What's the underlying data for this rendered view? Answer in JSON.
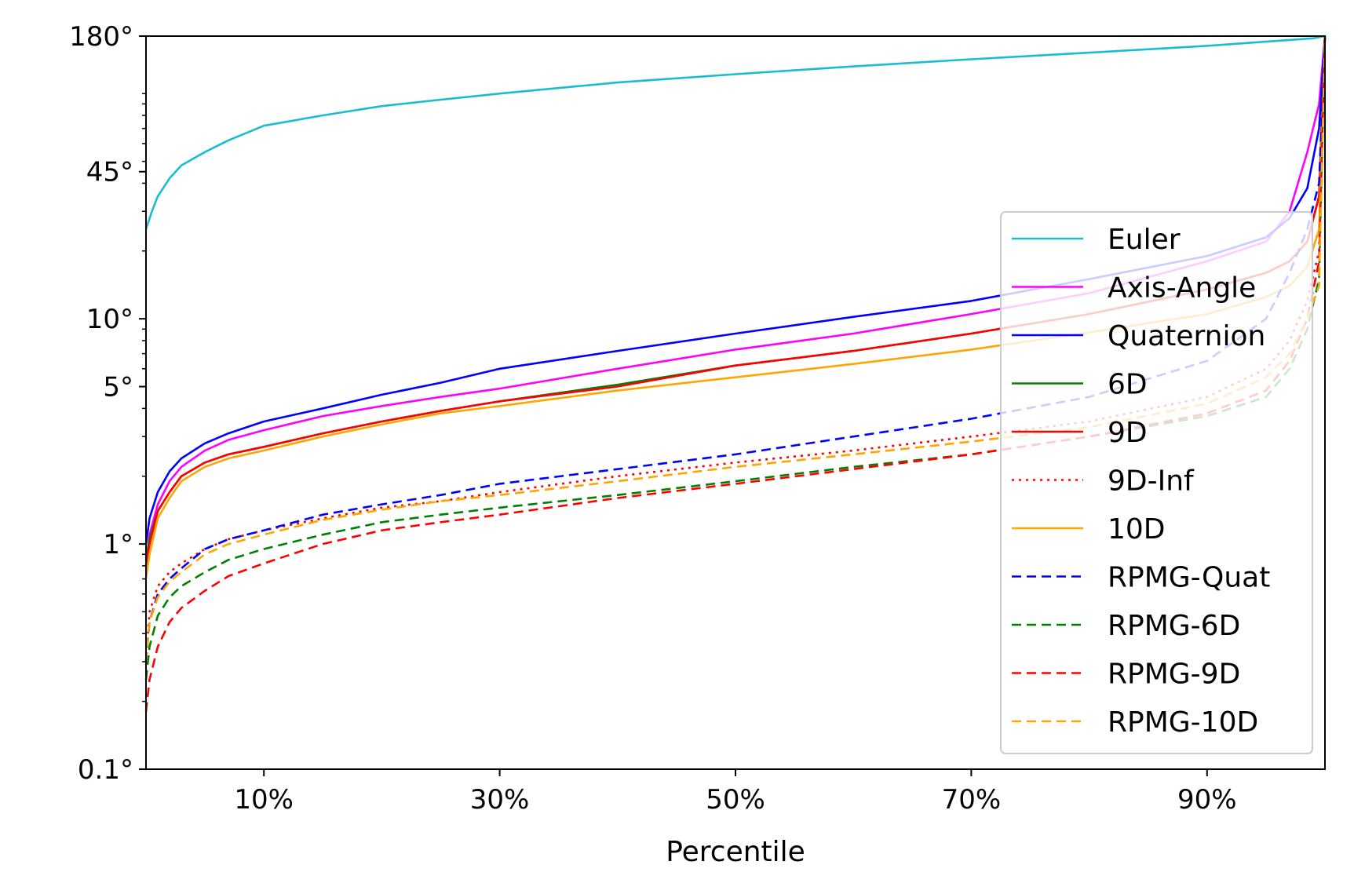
{
  "chart_data": {
    "type": "line",
    "title": "",
    "xlabel": "Percentile",
    "ylabel": "",
    "xlim": [
      0,
      100
    ],
    "ylim": [
      0.1,
      180
    ],
    "yscale": "log",
    "xticks": [
      {
        "value": 10,
        "label": "10%"
      },
      {
        "value": 30,
        "label": "30%"
      },
      {
        "value": 50,
        "label": "50%"
      },
      {
        "value": 70,
        "label": "70%"
      },
      {
        "value": 90,
        "label": "90%"
      }
    ],
    "yticks": [
      {
        "value": 0.1,
        "label": "0.1°"
      },
      {
        "value": 1,
        "label": "1°"
      },
      {
        "value": 5,
        "label": "5°"
      },
      {
        "value": 10,
        "label": "10°"
      },
      {
        "value": 45,
        "label": "45°"
      },
      {
        "value": 180,
        "label": "180°"
      }
    ],
    "grid": false,
    "legend_position": "right",
    "series": [
      {
        "name": "Euler",
        "color": "#17becf",
        "style": "solid",
        "x": [
          0,
          0.5,
          1,
          2,
          3,
          5,
          7,
          10,
          15,
          20,
          25,
          30,
          40,
          50,
          60,
          70,
          80,
          90,
          95,
          99,
          100
        ],
        "y": [
          25,
          30,
          35,
          42,
          48,
          55,
          62,
          72,
          80,
          88,
          94,
          100,
          112,
          122,
          132,
          142,
          152,
          163,
          170,
          176,
          180
        ]
      },
      {
        "name": "Axis-Angle",
        "color": "#ff00ff",
        "style": "solid",
        "x": [
          0,
          0.3,
          1,
          2,
          3,
          5,
          7,
          10,
          15,
          20,
          25,
          30,
          40,
          50,
          60,
          70,
          80,
          90,
          95,
          97,
          98.5,
          99.5,
          100
        ],
        "y": [
          0.8,
          1.1,
          1.5,
          1.9,
          2.2,
          2.6,
          2.9,
          3.2,
          3.7,
          4.1,
          4.5,
          4.9,
          6.0,
          7.3,
          8.6,
          10.5,
          13,
          18,
          22,
          30,
          55,
          90,
          180
        ]
      },
      {
        "name": "Quaternion",
        "color": "#0000ff",
        "style": "solid",
        "x": [
          0,
          0.3,
          1,
          2,
          3,
          5,
          7,
          10,
          15,
          20,
          25,
          30,
          40,
          50,
          60,
          70,
          80,
          90,
          95,
          97,
          98.5,
          99.5,
          100
        ],
        "y": [
          1.0,
          1.3,
          1.7,
          2.1,
          2.4,
          2.8,
          3.1,
          3.5,
          4.0,
          4.6,
          5.2,
          6.0,
          7.2,
          8.6,
          10.2,
          12,
          15,
          19,
          23,
          28,
          38,
          70,
          180
        ]
      },
      {
        "name": "6D",
        "color": "#008000",
        "style": "solid",
        "x": [
          0,
          0.3,
          1,
          2,
          3,
          5,
          7,
          10,
          15,
          20,
          25,
          30,
          40,
          50,
          60,
          70,
          80,
          90,
          95,
          97,
          98.5,
          99.5,
          100
        ],
        "y": [
          0.85,
          1.05,
          1.4,
          1.7,
          2.0,
          2.3,
          2.5,
          2.7,
          3.1,
          3.5,
          3.9,
          4.3,
          5.1,
          6.2,
          7.2,
          8.6,
          10.5,
          13.5,
          16,
          18,
          22,
          35,
          180
        ]
      },
      {
        "name": "9D",
        "color": "#ff0000",
        "style": "solid",
        "x": [
          0,
          0.3,
          1,
          2,
          3,
          5,
          7,
          10,
          15,
          20,
          25,
          30,
          40,
          50,
          60,
          70,
          80,
          90,
          95,
          97,
          98.5,
          99.5,
          100
        ],
        "y": [
          0.8,
          1.0,
          1.4,
          1.7,
          2.0,
          2.3,
          2.5,
          2.7,
          3.1,
          3.5,
          3.9,
          4.3,
          5.0,
          6.2,
          7.2,
          8.6,
          10.5,
          13.5,
          16,
          18,
          22,
          35,
          180
        ]
      },
      {
        "name": "9D-Inf",
        "color": "#ff0000",
        "style": "dotted",
        "x": [
          0,
          0.3,
          1,
          2,
          3,
          5,
          7,
          10,
          15,
          20,
          25,
          30,
          40,
          50,
          60,
          70,
          80,
          90,
          95,
          97,
          98.5,
          99.5,
          100
        ],
        "y": [
          0.3,
          0.5,
          0.65,
          0.75,
          0.82,
          0.95,
          1.05,
          1.15,
          1.3,
          1.45,
          1.55,
          1.7,
          2.0,
          2.3,
          2.6,
          3.0,
          3.5,
          4.5,
          6.0,
          8.0,
          12,
          20,
          180
        ]
      },
      {
        "name": "10D",
        "color": "#ffa500",
        "style": "solid",
        "x": [
          0,
          0.3,
          1,
          2,
          3,
          5,
          7,
          10,
          15,
          20,
          25,
          30,
          40,
          50,
          60,
          70,
          80,
          90,
          95,
          97,
          98.5,
          99.5,
          100
        ],
        "y": [
          0.7,
          0.9,
          1.3,
          1.6,
          1.9,
          2.2,
          2.4,
          2.6,
          3.0,
          3.4,
          3.8,
          4.1,
          4.8,
          5.5,
          6.3,
          7.3,
          8.7,
          10.5,
          12.5,
          14,
          17,
          25,
          180
        ]
      },
      {
        "name": "RPMG-Quat",
        "color": "#0000ff",
        "style": "dashed",
        "x": [
          0,
          0.3,
          1,
          2,
          3,
          5,
          7,
          10,
          15,
          20,
          25,
          30,
          40,
          50,
          60,
          70,
          80,
          90,
          95,
          97,
          98.5,
          99.5,
          100
        ],
        "y": [
          0.3,
          0.45,
          0.6,
          0.7,
          0.78,
          0.95,
          1.05,
          1.15,
          1.35,
          1.5,
          1.65,
          1.85,
          2.15,
          2.5,
          3.0,
          3.6,
          4.5,
          6.5,
          10,
          16,
          25,
          40,
          180
        ]
      },
      {
        "name": "RPMG-6D",
        "color": "#008000",
        "style": "dashed",
        "x": [
          0,
          0.3,
          1,
          2,
          3,
          5,
          7,
          10,
          15,
          20,
          25,
          30,
          40,
          50,
          60,
          70,
          80,
          90,
          95,
          97,
          98.5,
          99.5,
          100
        ],
        "y": [
          0.25,
          0.35,
          0.48,
          0.58,
          0.65,
          0.75,
          0.85,
          0.95,
          1.1,
          1.25,
          1.35,
          1.45,
          1.65,
          1.9,
          2.2,
          2.5,
          3.0,
          3.7,
          4.5,
          6,
          9,
          15,
          180
        ]
      },
      {
        "name": "RPMG-9D",
        "color": "#ff0000",
        "style": "dashed",
        "x": [
          0,
          0.3,
          1,
          2,
          3,
          5,
          7,
          10,
          15,
          20,
          25,
          30,
          40,
          50,
          60,
          70,
          80,
          90,
          95,
          97,
          98.5,
          99.5,
          100
        ],
        "y": [
          0.18,
          0.25,
          0.35,
          0.45,
          0.52,
          0.62,
          0.72,
          0.82,
          1.0,
          1.15,
          1.25,
          1.35,
          1.6,
          1.85,
          2.15,
          2.5,
          3.0,
          3.8,
          4.8,
          6.5,
          10,
          18,
          180
        ]
      },
      {
        "name": "RPMG-10D",
        "color": "#ffa500",
        "style": "dashed",
        "x": [
          0,
          0.3,
          1,
          2,
          3,
          5,
          7,
          10,
          15,
          20,
          25,
          30,
          40,
          50,
          60,
          70,
          80,
          90,
          95,
          97,
          98.5,
          99.5,
          100
        ],
        "y": [
          0.3,
          0.45,
          0.58,
          0.68,
          0.75,
          0.9,
          1.0,
          1.1,
          1.28,
          1.42,
          1.55,
          1.65,
          1.9,
          2.2,
          2.5,
          2.85,
          3.3,
          4.2,
          5.5,
          7,
          10,
          14,
          180
        ]
      }
    ]
  }
}
